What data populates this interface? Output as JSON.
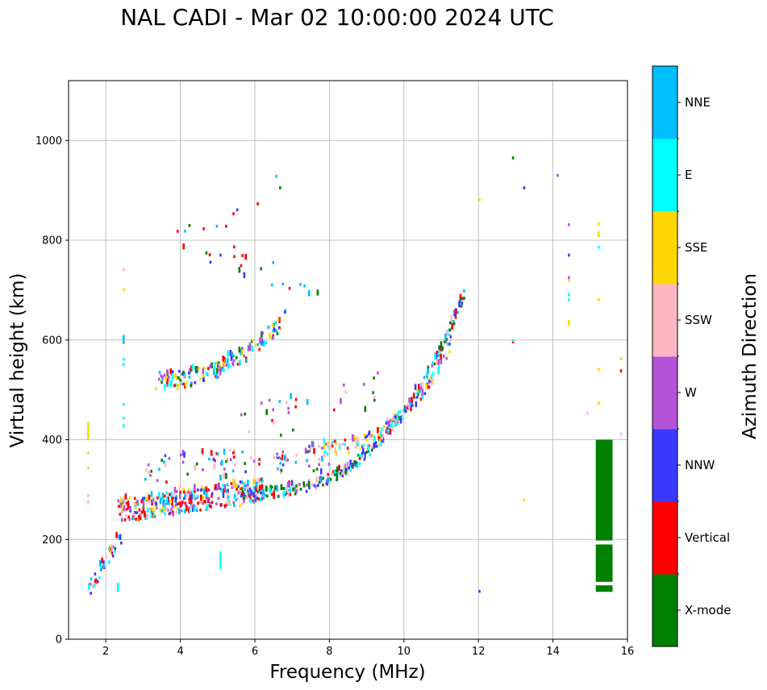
{
  "chart_data": {
    "type": "scatter",
    "title": "NAL CADI - Mar 02 10:00:00 2024 UTC",
    "xlabel": "Frequency (MHz)",
    "ylabel": "Virtual height (km)",
    "xlim": [
      1,
      16
    ],
    "ylim": [
      0,
      1120
    ],
    "xticks": [
      2,
      4,
      6,
      8,
      10,
      12,
      14,
      16
    ],
    "yticks": [
      0,
      200,
      400,
      600,
      800,
      1000
    ],
    "grid": true,
    "colorbar": {
      "label": "Azimuth Direction",
      "entries": [
        {
          "label": "X-mode",
          "color": "#008000"
        },
        {
          "label": "Vertical",
          "color": "#ff0000"
        },
        {
          "label": "NNW",
          "color": "#3a3aff"
        },
        {
          "label": "W",
          "color": "#b452d8"
        },
        {
          "label": "SSW",
          "color": "#ffb6c1"
        },
        {
          "label": "SSE",
          "color": "#ffd700"
        },
        {
          "label": "E",
          "color": "#00ffff"
        },
        {
          "label": "NNE",
          "color": "#00bfff"
        }
      ]
    },
    "bin": {
      "df": 0.05,
      "dh": 6
    },
    "tracks": [
      {
        "name": "low-E-trace",
        "f0": 1.5,
        "f1": 2.4,
        "h0": 95,
        "h1": 205,
        "hfn": "linear",
        "shape": "diag",
        "spread": 30,
        "count": 45,
        "colors": [
          "Vertical",
          "SSE",
          "E",
          "NNE",
          "SSW",
          "NNW"
        ]
      },
      {
        "name": "F1-o-trace",
        "f0": 2.3,
        "f1": 6.2,
        "h0": 255,
        "h1": 295,
        "hfn": "flat",
        "spread": 48,
        "count": 360,
        "colors": [
          "Vertical",
          "Vertical",
          "E",
          "NNE",
          "SSE",
          "SSW",
          "W",
          "NNW"
        ]
      },
      {
        "name": "F-upper-branch",
        "f0": 5.6,
        "f1": 11.6,
        "h0": 290,
        "h1": 690,
        "hfn": "pow",
        "p": 2.8,
        "spread": 22,
        "count": 300,
        "colors": [
          "X-mode",
          "X-mode",
          "Vertical",
          "E",
          "NNE",
          "NNW",
          "W",
          "SSW"
        ]
      },
      {
        "name": "F-outer-branch",
        "f0": 7.8,
        "f1": 11.3,
        "h0": 380,
        "h1": 600,
        "hfn": "pow",
        "p": 2.4,
        "spread": 30,
        "count": 130,
        "colors": [
          "Vertical",
          "W",
          "NNW",
          "E",
          "SSW",
          "SSE"
        ]
      },
      {
        "name": "F-second-hop",
        "f0": 3.3,
        "f1": 6.8,
        "h0": 515,
        "h1": 640,
        "hfn": "pow",
        "p": 2.2,
        "spread": 36,
        "count": 170,
        "colors": [
          "Vertical",
          "E",
          "NNE",
          "NNW",
          "W",
          "SSE",
          "X-mode"
        ]
      },
      {
        "name": "spread-band",
        "f0": 3.0,
        "f1": 8.0,
        "h0": 335,
        "h1": 360,
        "hfn": "linear",
        "spread": 60,
        "count": 90,
        "colors": [
          "W",
          "NNE",
          "Vertical",
          "SSW",
          "NNW",
          "X-mode"
        ]
      },
      {
        "name": "mid-band",
        "f0": 5.5,
        "f1": 9.5,
        "h0": 420,
        "h1": 500,
        "hfn": "linear",
        "spread": 80,
        "count": 30,
        "colors": [
          "W",
          "SSW",
          "Vertical",
          "X-mode",
          "NNE"
        ]
      },
      {
        "name": "upper-sparse",
        "f0": 4.0,
        "f1": 8.0,
        "h0": 810,
        "h1": 670,
        "hfn": "linear",
        "spread": 60,
        "count": 22,
        "colors": [
          "Vertical",
          "NNE",
          "NNW",
          "X-mode"
        ]
      }
    ],
    "points": [
      {
        "f": 1.5,
        "h": 400,
        "c": "SSE",
        "n": 6
      },
      {
        "f": 1.5,
        "h": 370,
        "c": "SSE"
      },
      {
        "f": 1.5,
        "h": 340,
        "c": "SSE"
      },
      {
        "f": 1.5,
        "h": 285,
        "c": "SSW"
      },
      {
        "f": 1.5,
        "h": 272,
        "c": "SSW"
      },
      {
        "f": 2.45,
        "h": 738,
        "c": "SSW"
      },
      {
        "f": 2.45,
        "h": 698,
        "c": "SSE"
      },
      {
        "f": 2.45,
        "h": 592,
        "c": "NNE",
        "n": 3
      },
      {
        "f": 2.45,
        "h": 558,
        "c": "E"
      },
      {
        "f": 2.45,
        "h": 548,
        "c": "E"
      },
      {
        "f": 2.45,
        "h": 468,
        "c": "E"
      },
      {
        "f": 2.45,
        "h": 440,
        "c": "E"
      },
      {
        "f": 2.45,
        "h": 425,
        "c": "E"
      },
      {
        "f": 2.3,
        "h": 95,
        "c": "E",
        "n": 3
      },
      {
        "f": 5.05,
        "h": 140,
        "c": "E",
        "n": 6
      },
      {
        "f": 3.9,
        "h": 815,
        "c": "Vertical"
      },
      {
        "f": 4.1,
        "h": 815,
        "c": "NNE"
      },
      {
        "f": 4.6,
        "h": 820,
        "c": "Vertical"
      },
      {
        "f": 4.95,
        "h": 825,
        "c": "NNE"
      },
      {
        "f": 5.2,
        "h": 825,
        "c": "Vertical"
      },
      {
        "f": 5.4,
        "h": 850,
        "c": "Vertical"
      },
      {
        "f": 5.5,
        "h": 858,
        "c": "NNW"
      },
      {
        "f": 6.05,
        "h": 870,
        "c": "Vertical"
      },
      {
        "f": 6.55,
        "h": 925,
        "c": "NNE"
      },
      {
        "f": 6.65,
        "h": 902,
        "c": "X-mode"
      },
      {
        "f": 12.0,
        "h": 878,
        "c": "SSE"
      },
      {
        "f": 12.9,
        "h": 962,
        "c": "X-mode"
      },
      {
        "f": 13.2,
        "h": 902,
        "c": "NNW"
      },
      {
        "f": 14.1,
        "h": 927,
        "c": "W"
      },
      {
        "f": 14.4,
        "h": 828,
        "c": "W"
      },
      {
        "f": 14.4,
        "h": 767,
        "c": "NNW"
      },
      {
        "f": 14.4,
        "h": 722,
        "c": "W"
      },
      {
        "f": 14.4,
        "h": 716,
        "c": "SSE"
      },
      {
        "f": 14.4,
        "h": 688,
        "c": "E"
      },
      {
        "f": 14.4,
        "h": 678,
        "c": "E"
      },
      {
        "f": 14.4,
        "h": 628,
        "c": "SSE",
        "n": 2
      },
      {
        "f": 15.2,
        "h": 830,
        "c": "SSE"
      },
      {
        "f": 15.2,
        "h": 806,
        "c": "SSE",
        "n": 2
      },
      {
        "f": 15.2,
        "h": 783,
        "c": "E"
      },
      {
        "f": 15.2,
        "h": 678,
        "c": "SSE"
      },
      {
        "f": 15.2,
        "h": 538,
        "c": "SSE"
      },
      {
        "f": 15.2,
        "h": 470,
        "c": "SSE"
      },
      {
        "f": 14.9,
        "h": 450,
        "c": "SSW"
      },
      {
        "f": 15.8,
        "h": 560,
        "c": "SSE"
      },
      {
        "f": 15.8,
        "h": 535,
        "c": "Vertical"
      },
      {
        "f": 15.8,
        "h": 408,
        "c": "SSW"
      },
      {
        "f": 12.9,
        "h": 593,
        "c": "Vertical"
      },
      {
        "f": 12.9,
        "h": 596,
        "c": "E"
      },
      {
        "f": 13.2,
        "h": 276,
        "c": "SSE"
      },
      {
        "f": 12.0,
        "h": 93,
        "c": "NNW"
      }
    ],
    "blocks": [
      {
        "f0": 15.15,
        "f1": 15.6,
        "h0": 198,
        "h1": 400,
        "c": "X-mode"
      },
      {
        "f0": 15.15,
        "f1": 15.6,
        "h0": 115,
        "h1": 190,
        "c": "X-mode"
      },
      {
        "f0": 15.15,
        "f1": 15.6,
        "h0": 95,
        "h1": 108,
        "c": "X-mode"
      }
    ]
  }
}
